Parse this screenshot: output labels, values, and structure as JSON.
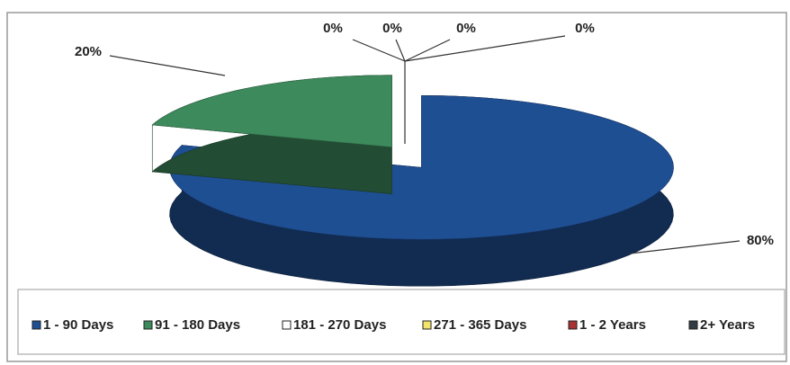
{
  "chart_data": {
    "type": "pie",
    "categories": [
      "1 - 90 Days",
      "91 - 180 Days",
      "181 - 270 Days",
      "271 - 365 Days",
      "1 - 2 Years",
      "2+ Years"
    ],
    "values": [
      80,
      20,
      0,
      0,
      0,
      0
    ],
    "value_labels": [
      "80%",
      "20%",
      "0%",
      "0%",
      "0%",
      "0%"
    ],
    "colors": [
      "#1f4f93",
      "#3d8a5c",
      "#ffffff",
      "#f2e36a",
      "#a83232",
      "#333b42"
    ],
    "legend": "bottom"
  }
}
